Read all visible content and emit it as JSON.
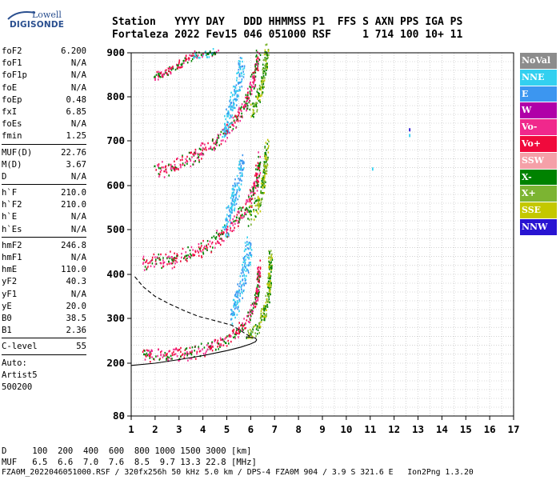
{
  "logo": {
    "line1": "Lowell",
    "line2": "DIGISONDE"
  },
  "header": {
    "line1": "Station   YYYY DAY   DDD HHMMSS P1  FFS S AXN PPS IGA PS",
    "line2": "Fortaleza 2022 Fev15 046 051000 RSF     1 714 100 10+ 11"
  },
  "params": {
    "group1": [
      {
        "k": "foF2",
        "v": "6.200"
      },
      {
        "k": "foF1",
        "v": "N/A"
      },
      {
        "k": "foF1p",
        "v": "N/A"
      },
      {
        "k": "foE",
        "v": "N/A"
      },
      {
        "k": "foEp",
        "v": "0.48"
      },
      {
        "k": "fxI",
        "v": "6.85"
      },
      {
        "k": "foEs",
        "v": "N/A"
      },
      {
        "k": "fmin",
        "v": "1.25"
      }
    ],
    "group2": [
      {
        "k": "MUF(D)",
        "v": "22.76"
      },
      {
        "k": "M(D)",
        "v": "3.67"
      },
      {
        "k": "D",
        "v": "N/A"
      }
    ],
    "group3": [
      {
        "k": "h`F",
        "v": "210.0"
      },
      {
        "k": "h`F2",
        "v": "210.0"
      },
      {
        "k": "h`E",
        "v": "N/A"
      },
      {
        "k": "h`Es",
        "v": "N/A"
      }
    ],
    "group4": [
      {
        "k": "hmF2",
        "v": "246.8"
      },
      {
        "k": "hmF1",
        "v": "N/A"
      },
      {
        "k": "hmE",
        "v": "110.0"
      },
      {
        "k": "yF2",
        "v": "40.3"
      },
      {
        "k": "yF1",
        "v": "N/A"
      },
      {
        "k": "yE",
        "v": "20.0"
      },
      {
        "k": "B0",
        "v": "38.5"
      },
      {
        "k": "B1",
        "v": "2.36"
      }
    ],
    "group5": [
      {
        "k": "C-level",
        "v": "55"
      }
    ],
    "auto": [
      "Auto:",
      "Artist5",
      "500200"
    ]
  },
  "legend": [
    {
      "label": "NoVal",
      "color": "#8c8c8c"
    },
    {
      "label": "NNE",
      "color": "#33d0f0"
    },
    {
      "label": "E",
      "color": "#3c96f0"
    },
    {
      "label": "W",
      "color": "#b000a8"
    },
    {
      "label": "Vo-",
      "color": "#f0288c"
    },
    {
      "label": "Vo+",
      "color": "#f00a3c"
    },
    {
      "label": "SSW",
      "color": "#f5a0a8"
    },
    {
      "label": "X-",
      "color": "#008200"
    },
    {
      "label": "X+",
      "color": "#7cb432"
    },
    {
      "label": "SSE",
      "color": "#c4c800"
    },
    {
      "label": "NNW",
      "color": "#2814d2"
    }
  ],
  "footer": {
    "line1": "D     100  200  400  600  800 1000 1500 3000 [km]",
    "line2": "MUF   6.5  6.6  7.0  7.6  8.5  9.7 13.3 22.8 [MHz]",
    "line3": "FZA0M_2022046051000.RSF / 320fx256h 50 kHz 5.0 km / DPS-4 FZA0M 904 / 3.9 S 321.6 E   Ion2Png 1.3.20"
  },
  "chart_data": {
    "type": "scatter",
    "xlim": [
      1,
      17
    ],
    "ylim": [
      80,
      900
    ],
    "xticks": [
      "1",
      "2",
      "3",
      "4",
      "5",
      "6",
      "7",
      "8",
      "9",
      "10",
      "11",
      "12",
      "13",
      "14",
      "15",
      "16",
      "17"
    ],
    "yticks": [
      "80",
      "200",
      "300",
      "400",
      "500",
      "600",
      "700",
      "800",
      "900"
    ],
    "ytick_values": [
      80,
      200,
      300,
      400,
      500,
      600,
      700,
      800,
      900
    ],
    "grid": true,
    "traces": [
      {
        "name": "o1",
        "pts": [
          [
            1.4,
            212
          ],
          [
            2,
            212
          ],
          [
            2.6,
            213
          ],
          [
            3.2,
            215
          ],
          [
            3.8,
            220
          ],
          [
            4.3,
            228
          ],
          [
            4.8,
            240
          ],
          [
            5.2,
            255
          ],
          [
            5.5,
            268
          ],
          [
            5.8,
            285
          ],
          [
            6.0,
            300
          ],
          [
            6.15,
            320
          ],
          [
            6.25,
            345
          ],
          [
            6.3,
            375
          ],
          [
            6.33,
            410
          ]
        ],
        "spread": [
          4,
          25
        ],
        "cols": [
          "#f00a3c",
          "#f0288c",
          "#008200"
        ]
      },
      {
        "name": "o1-cyan",
        "pts": [
          [
            5.2,
            290
          ],
          [
            5.4,
            330
          ],
          [
            5.6,
            370
          ],
          [
            5.75,
            400
          ],
          [
            5.85,
            430
          ],
          [
            5.9,
            460
          ]
        ],
        "spread": [
          8,
          30
        ],
        "cols": [
          "#33d0f0",
          "#3c96f0"
        ]
      },
      {
        "name": "x1",
        "pts": [
          [
            5.8,
            250
          ],
          [
            6.2,
            270
          ],
          [
            6.5,
            300
          ],
          [
            6.65,
            330
          ],
          [
            6.75,
            360
          ],
          [
            6.8,
            400
          ],
          [
            6.8,
            440
          ]
        ],
        "spread": [
          5,
          25
        ],
        "cols": [
          "#008200",
          "#7cb432",
          "#c4c800"
        ]
      },
      {
        "name": "o2",
        "pts": [
          [
            1.4,
            418
          ],
          [
            2,
            420
          ],
          [
            2.6,
            425
          ],
          [
            3.2,
            433
          ],
          [
            3.8,
            445
          ],
          [
            4.3,
            460
          ],
          [
            4.8,
            478
          ],
          [
            5.2,
            500
          ],
          [
            5.5,
            520
          ],
          [
            5.8,
            545
          ],
          [
            6.05,
            575
          ],
          [
            6.25,
            610
          ],
          [
            6.35,
            650
          ]
        ],
        "spread": [
          5,
          30
        ],
        "cols": [
          "#f00a3c",
          "#f0288c",
          "#008200"
        ]
      },
      {
        "name": "o2-cyan",
        "pts": [
          [
            4.9,
            490
          ],
          [
            5.1,
            530
          ],
          [
            5.3,
            570
          ],
          [
            5.5,
            610
          ],
          [
            5.6,
            650
          ]
        ],
        "spread": [
          8,
          30
        ],
        "cols": [
          "#33d0f0",
          "#3c96f0"
        ]
      },
      {
        "name": "x2",
        "pts": [
          [
            5.9,
            520
          ],
          [
            6.3,
            550
          ],
          [
            6.5,
            590
          ],
          [
            6.6,
            630
          ],
          [
            6.65,
            680
          ]
        ],
        "spread": [
          5,
          30
        ],
        "cols": [
          "#008200",
          "#7cb432",
          "#c4c800"
        ]
      },
      {
        "name": "o3",
        "pts": [
          [
            2.0,
            625
          ],
          [
            2.6,
            632
          ],
          [
            3.2,
            645
          ],
          [
            3.8,
            662
          ],
          [
            4.3,
            680
          ],
          [
            4.8,
            702
          ],
          [
            5.2,
            725
          ],
          [
            5.5,
            750
          ],
          [
            5.8,
            780
          ],
          [
            6.0,
            810
          ],
          [
            6.2,
            850
          ],
          [
            6.3,
            890
          ]
        ],
        "spread": [
          5,
          30
        ],
        "cols": [
          "#f00a3c",
          "#f0288c",
          "#008200"
        ]
      },
      {
        "name": "o3-cyan",
        "pts": [
          [
            4.9,
            710
          ],
          [
            5.1,
            750
          ],
          [
            5.3,
            790
          ],
          [
            5.5,
            830
          ],
          [
            5.6,
            870
          ]
        ],
        "spread": [
          8,
          30
        ],
        "cols": [
          "#33d0f0",
          "#3c96f0"
        ]
      },
      {
        "name": "x3",
        "pts": [
          [
            6.0,
            750
          ],
          [
            6.3,
            790
          ],
          [
            6.5,
            830
          ],
          [
            6.6,
            870
          ],
          [
            6.7,
            900
          ]
        ],
        "spread": [
          5,
          30
        ],
        "cols": [
          "#008200",
          "#7cb432",
          "#c4c800"
        ]
      },
      {
        "name": "o4",
        "pts": [
          [
            1.9,
            838
          ],
          [
            2.4,
            852
          ],
          [
            2.9,
            866
          ],
          [
            3.3,
            880
          ],
          [
            3.7,
            895
          ]
        ],
        "spread": [
          4,
          15
        ],
        "cols": [
          "#f00a3c",
          "#f0288c",
          "#008200"
        ]
      },
      {
        "name": "o4b",
        "pts": [
          [
            3.6,
            890
          ],
          [
            4.2,
            895
          ],
          [
            4.6,
            900
          ]
        ],
        "spread": [
          3,
          12
        ],
        "cols": [
          "#f0288c",
          "#008200",
          "#33d0f0"
        ]
      }
    ],
    "extra_points": [
      [
        12.65,
        725,
        "#2814d2"
      ],
      [
        12.65,
        712,
        "#33d0f0"
      ],
      [
        11.1,
        637,
        "#33d0f0"
      ],
      [
        2.0,
        840,
        "#f0288c"
      ]
    ],
    "profile_solid": [
      [
        1,
        195
      ],
      [
        2,
        200
      ],
      [
        3,
        208
      ],
      [
        4,
        217
      ],
      [
        5,
        228
      ],
      [
        5.6,
        236
      ],
      [
        6.0,
        243
      ],
      [
        6.2,
        248
      ],
      [
        6.25,
        252
      ],
      [
        6.2,
        256
      ],
      [
        6.0,
        258
      ],
      [
        5.8,
        259
      ]
    ],
    "profile_dashed": [
      [
        1.15,
        395
      ],
      [
        1.5,
        372
      ],
      [
        2,
        350
      ],
      [
        2.6,
        333
      ],
      [
        3.2,
        318
      ],
      [
        3.8,
        305
      ],
      [
        4.5,
        295
      ],
      [
        5.2,
        285
      ],
      [
        5.6,
        272
      ],
      [
        5.9,
        262
      ],
      [
        6.05,
        258
      ]
    ]
  }
}
